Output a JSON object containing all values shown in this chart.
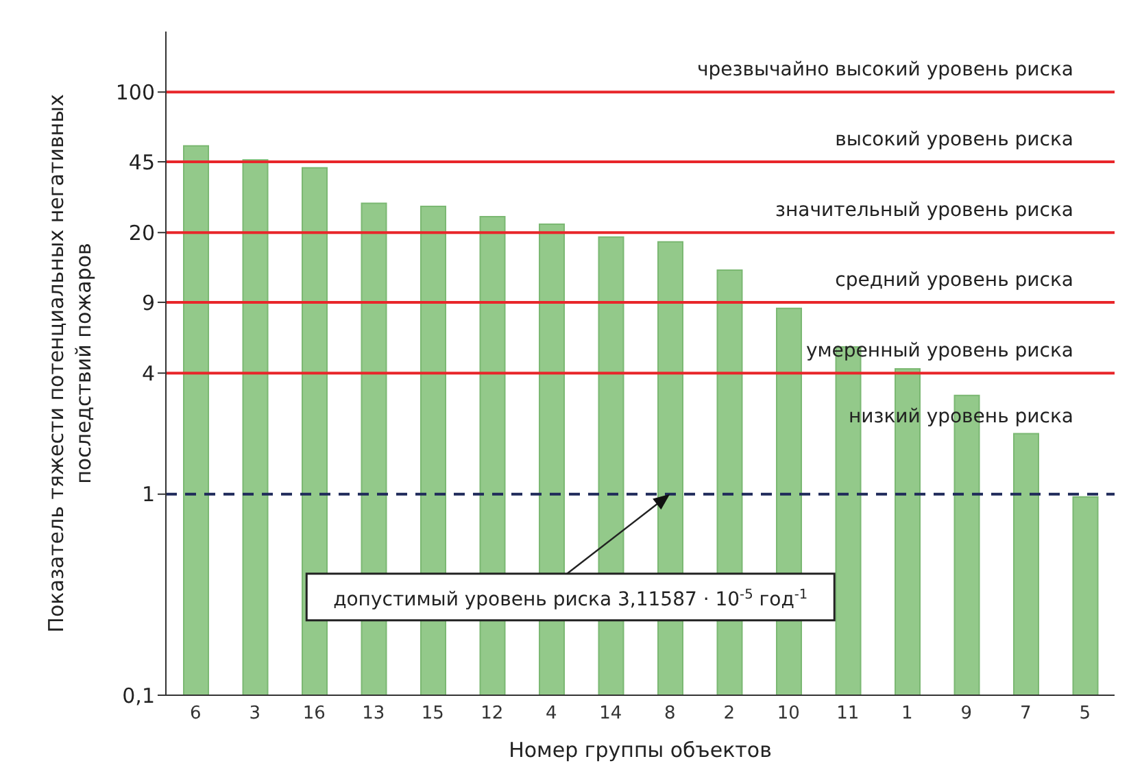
{
  "chart_data": {
    "type": "bar",
    "xlabel": "Номер группы объектов",
    "ylabel": "Показатель  тяжести потенциальных негативных последствий пожаров",
    "categories": [
      "6",
      "3",
      "16",
      "13",
      "15",
      "12",
      "4",
      "14",
      "8",
      "2",
      "10",
      "11",
      "1",
      "9",
      "7",
      "5"
    ],
    "values": [
      54,
      46,
      42,
      28,
      27,
      24,
      22,
      19,
      18,
      13,
      8.4,
      5.4,
      4.2,
      3.1,
      2.0,
      0.97
    ],
    "color": "#93c98a",
    "log": true,
    "ylim": [
      0.1,
      200
    ],
    "yticks": [
      {
        "value": 0.1,
        "label": "0,1"
      },
      1,
      4,
      9,
      20,
      45,
      100
    ],
    "ref_lines": [
      {
        "axis": "y",
        "value": 100,
        "label": "чрезвычайно высокий уровень риска",
        "color": "#e8262a",
        "line_style": "solid"
      },
      {
        "axis": "y",
        "value": 45,
        "label": "высокий уровень риска",
        "color": "#e8262a",
        "line_style": "solid"
      },
      {
        "axis": "y",
        "value": 20,
        "label": "значительный уровень риска",
        "color": "#e8262a",
        "line_style": "solid"
      },
      {
        "axis": "y",
        "value": 9,
        "label": "средний уровень риска",
        "color": "#e8262a",
        "line_style": "solid"
      },
      {
        "axis": "y",
        "value": 4,
        "label": "умеренный уровень риска",
        "color": "#e8262a",
        "line_style": "solid"
      },
      {
        "axis": "y",
        "value": 1,
        "color": "#1f2a5a",
        "line_style": "dashed"
      }
    ],
    "annotations": [
      {
        "text": "допустимый уровень риска 3,11587 · 10$^{-5}$ год$^{-1}$",
        "x": "8",
        "y": 1
      },
      "низкий уровень риска"
    ]
  }
}
